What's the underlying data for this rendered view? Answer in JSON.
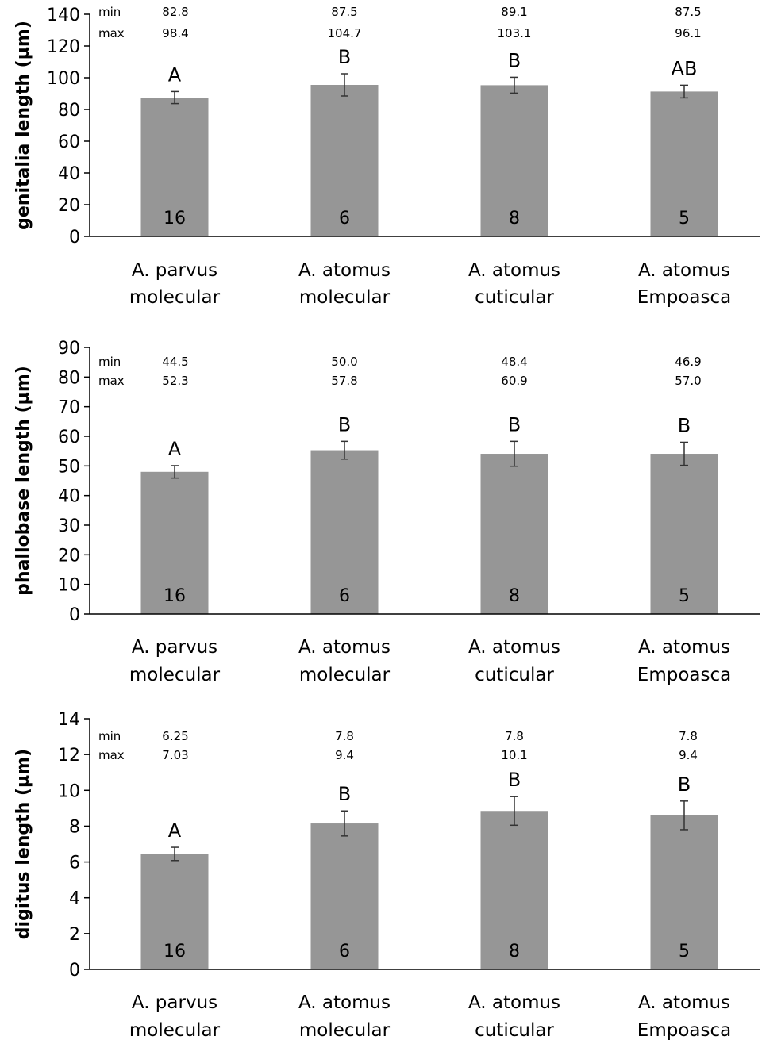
{
  "chart_data": [
    {
      "type": "bar",
      "ylabel": "genitalia length (µm)",
      "ylim": [
        0,
        140
      ],
      "yticks": [
        "0",
        "20",
        "40",
        "60",
        "80",
        "100",
        "120",
        "140"
      ],
      "categories": [
        "A. parvus molecular",
        "A. atomus molecular",
        "A. atomus cuticular",
        "A. atomus Empoasca"
      ],
      "category_lines": [
        [
          "A. parvus",
          "molecular"
        ],
        [
          "A. atomus",
          "molecular"
        ],
        [
          "A. atomus",
          "cuticular"
        ],
        [
          "A. atomus",
          "Empoasca"
        ]
      ],
      "values": [
        87.5,
        95.5,
        95.3,
        91.3
      ],
      "error": [
        3.8,
        7.0,
        5.0,
        4.0
      ],
      "significance": [
        "A",
        "B",
        "B",
        "AB"
      ],
      "n": [
        "16",
        "6",
        "8",
        "5"
      ],
      "min_label": "min",
      "max_label": "max",
      "min": [
        "82.8",
        "87.5",
        "89.1",
        "87.5"
      ],
      "max": [
        "98.4",
        "104.7",
        "103.1",
        "96.1"
      ],
      "color": "#969696"
    },
    {
      "type": "bar",
      "ylabel": "phallobase length (µm)",
      "ylim": [
        0,
        90
      ],
      "yticks": [
        "0",
        "10",
        "20",
        "30",
        "40",
        "50",
        "60",
        "70",
        "80",
        "90"
      ],
      "categories": [
        "A. parvus molecular",
        "A. atomus molecular",
        "A. atomus cuticular",
        "A. atomus Empoasca"
      ],
      "category_lines": [
        [
          "A. parvus",
          "molecular"
        ],
        [
          "A. atomus",
          "molecular"
        ],
        [
          "A. atomus",
          "cuticular"
        ],
        [
          "A. atomus",
          "Empoasca"
        ]
      ],
      "values": [
        48.0,
        55.3,
        54.1,
        54.1
      ],
      "error": [
        2.1,
        3.0,
        4.2,
        3.9
      ],
      "significance": [
        "A",
        "B",
        "B",
        "B"
      ],
      "n": [
        "16",
        "6",
        "8",
        "5"
      ],
      "min_label": "min",
      "max_label": "max",
      "min": [
        "44.5",
        "50.0",
        "48.4",
        "46.9"
      ],
      "max": [
        "52.3",
        "57.8",
        "60.9",
        "57.0"
      ],
      "color": "#969696"
    },
    {
      "type": "bar",
      "ylabel": "digitus length (µm)",
      "ylim": [
        0,
        14
      ],
      "yticks": [
        "0",
        "2",
        "4",
        "6",
        "8",
        "10",
        "12",
        "14"
      ],
      "categories": [
        "A. parvus molecular",
        "A. atomus molecular",
        "A. atomus cuticular",
        "A. atomus Empoasca"
      ],
      "category_lines": [
        [
          "A. parvus",
          "molecular"
        ],
        [
          "A. atomus",
          "molecular"
        ],
        [
          "A. atomus",
          "cuticular"
        ],
        [
          "A. atomus",
          "Empoasca"
        ]
      ],
      "values": [
        6.45,
        8.15,
        8.85,
        8.6
      ],
      "error": [
        0.37,
        0.7,
        0.8,
        0.8
      ],
      "significance": [
        "A",
        "B",
        "B",
        "B"
      ],
      "n": [
        "16",
        "6",
        "8",
        "5"
      ],
      "min_label": "min",
      "max_label": "max",
      "min": [
        "6.25",
        "7.8",
        "7.8",
        "7.8"
      ],
      "max": [
        "7.03",
        "9.4",
        "10.1",
        "9.4"
      ],
      "color": "#969696"
    }
  ]
}
